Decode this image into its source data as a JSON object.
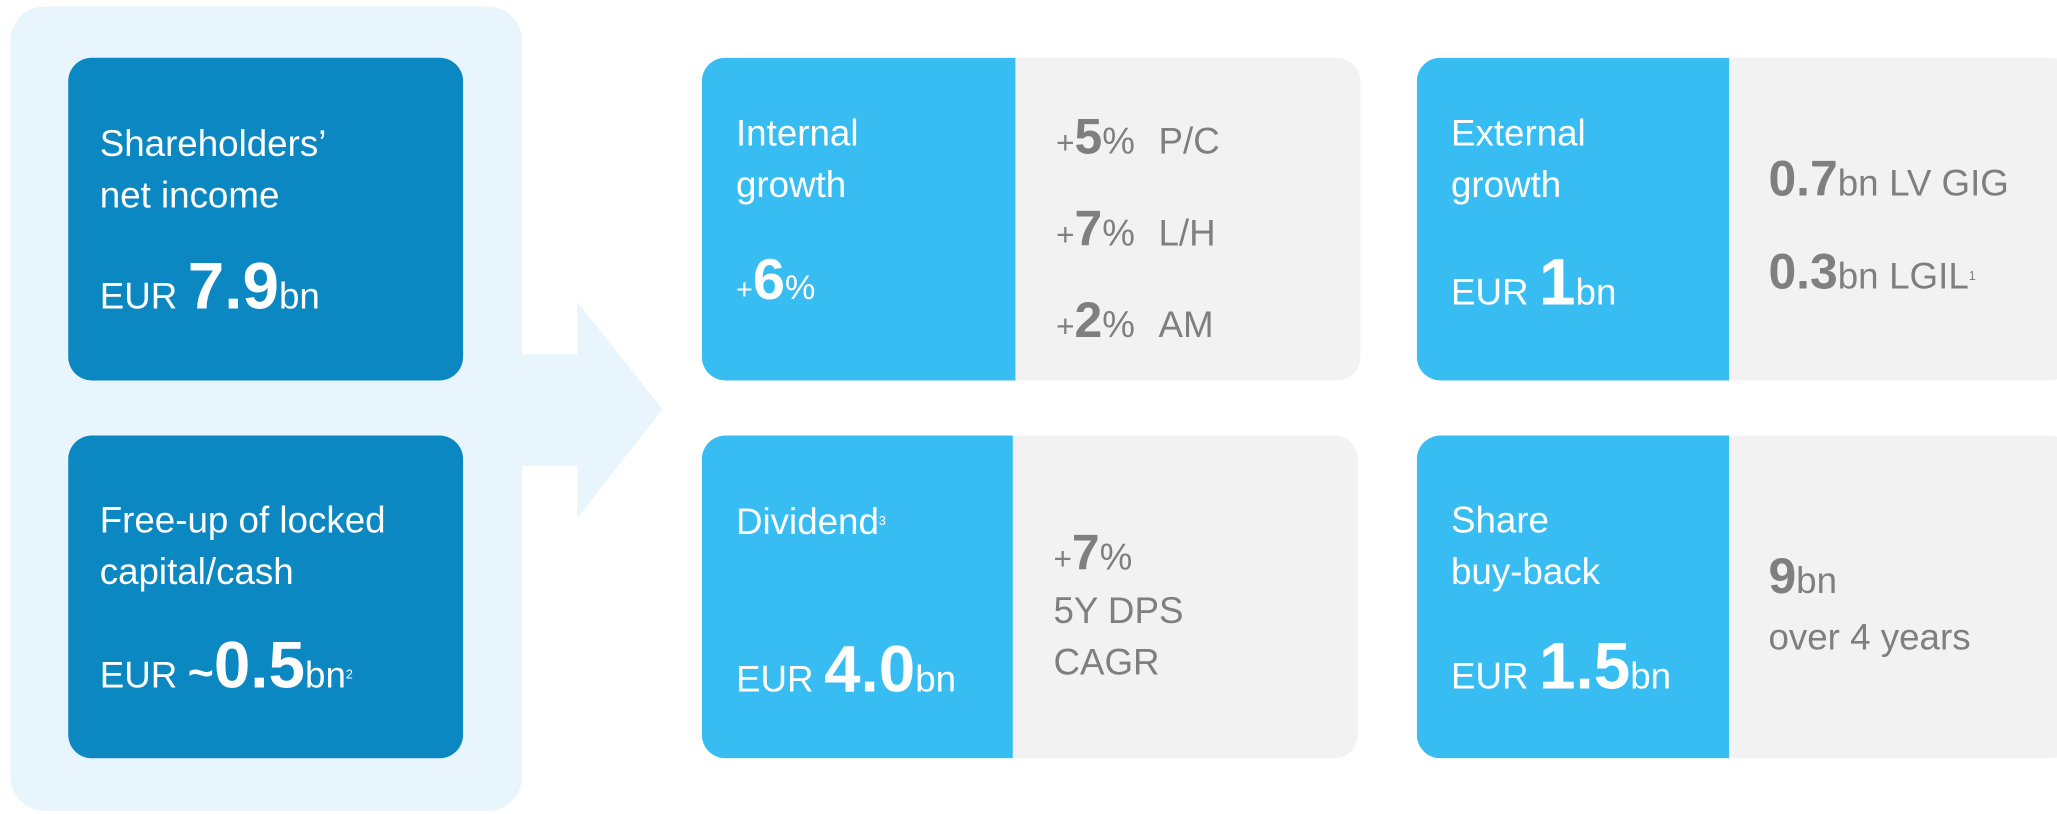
{
  "left": [
    {
      "label_lines": [
        "Shareholders’",
        "net income"
      ],
      "prefix": "EUR",
      "value": "7.9",
      "unit": "bn"
    },
    {
      "label_lines": [
        "Free-up of locked",
        "capital/cash"
      ],
      "prefix": "EUR",
      "approx": "~",
      "value": "0.5",
      "unit": "bn",
      "footnote": "2"
    }
  ],
  "cards": [
    {
      "title_lines": [
        "Internal",
        "growth"
      ],
      "headline": {
        "prefix": "+",
        "value": "6",
        "unit": "%"
      },
      "details": [
        {
          "prefix": "+",
          "value": "5",
          "unit": "%",
          "label": "P/C"
        },
        {
          "prefix": "+",
          "value": "7",
          "unit": "%",
          "label": "L/H"
        },
        {
          "prefix": "+",
          "value": "2",
          "unit": "%",
          "label": "AM"
        }
      ]
    },
    {
      "title_lines": [
        "External",
        "growth"
      ],
      "headline": {
        "prefix": "EUR",
        "value": "1",
        "unit": "bn"
      },
      "details": [
        {
          "value": "0.7",
          "unit": "bn",
          "label": "LV GIG"
        },
        {
          "value": "0.3",
          "unit": "bn",
          "label": "LGIL",
          "footnote": "1"
        }
      ]
    },
    {
      "title_lines": [
        "Dividend"
      ],
      "title_footnote": "3",
      "headline": {
        "prefix": "EUR",
        "value": "4.0",
        "unit": "bn"
      },
      "details": [
        {
          "prefix": "+",
          "value": "7",
          "unit": "%"
        }
      ],
      "note_lines": [
        "5Y DPS",
        "CAGR"
      ]
    },
    {
      "title_lines": [
        "Share",
        "buy-back"
      ],
      "headline": {
        "prefix": "EUR",
        "value": "1.5",
        "unit": "bn"
      },
      "details": [
        {
          "value": "9",
          "unit": "bn"
        }
      ],
      "note_lines": [
        "over 4 years"
      ]
    }
  ]
}
